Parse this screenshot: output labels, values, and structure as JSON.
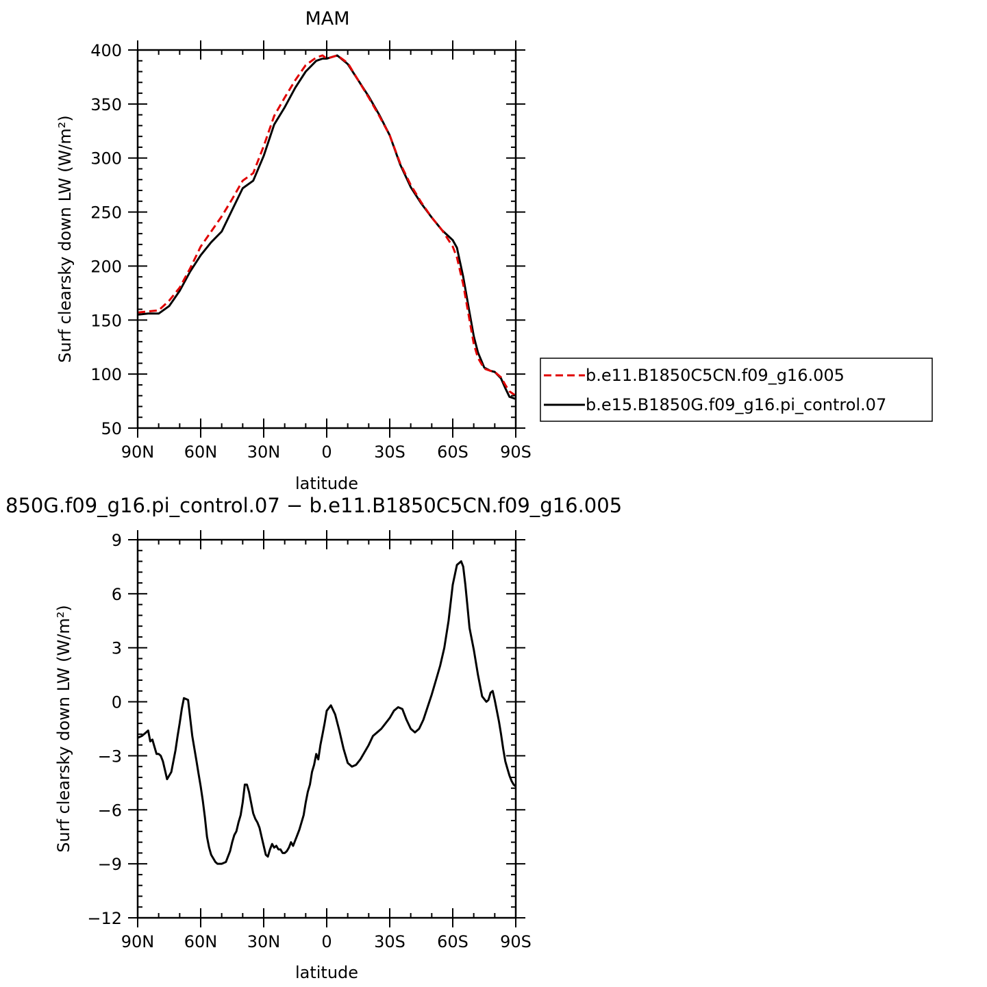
{
  "chart_data": [
    {
      "type": "line",
      "title": "MAM",
      "xlabel": "latitude",
      "ylabel": "Surf clearsky down LW (W/m²)",
      "xlim": [
        90,
        -90
      ],
      "ylim": [
        50,
        400
      ],
      "x_ticks": [
        90,
        60,
        30,
        0,
        -30,
        -60,
        -90
      ],
      "x_tick_labels": [
        "90N",
        "60N",
        "30N",
        "0",
        "30S",
        "60S",
        "90S"
      ],
      "y_ticks": [
        50,
        100,
        150,
        200,
        250,
        300,
        350,
        400
      ],
      "y_tick_labels": [
        "50",
        "100",
        "150",
        "200",
        "250",
        "300",
        "350",
        "400"
      ],
      "legend": {
        "placement": "right",
        "entries": [
          "b.e11.B1850C5CN.f09_g16.005",
          "b.e15.B1850G.f09_g16.pi_control.07"
        ]
      },
      "series": [
        {
          "name": "b.e11.B1850C5CN.f09_g16.005",
          "color": "#e00000",
          "dash": "dashed",
          "x": [
            90,
            85,
            80,
            75,
            70,
            65,
            60,
            55,
            50,
            45,
            40,
            35,
            30,
            25,
            20,
            15,
            10,
            5,
            2,
            0,
            -5,
            -10,
            -15,
            -20,
            -25,
            -30,
            -35,
            -40,
            -45,
            -50,
            -55,
            -60,
            -62,
            -65,
            -68,
            -70,
            -72,
            -75,
            -78,
            -80,
            -83,
            -85,
            -87,
            -90
          ],
          "y": [
            157,
            158,
            159,
            168,
            180,
            198,
            218,
            232,
            246,
            262,
            279,
            286,
            311,
            339,
            356,
            372,
            386,
            393,
            395,
            392,
            395,
            388,
            372,
            356,
            339,
            321,
            295,
            275,
            259,
            245,
            233,
            218,
            208,
            183,
            150,
            128,
            115,
            105,
            103,
            102,
            97,
            90,
            84,
            80
          ]
        },
        {
          "name": "b.e15.B1850G.f09_g16.pi_control.07",
          "color": "#000000",
          "dash": "solid",
          "x": [
            90,
            85,
            80,
            75,
            70,
            65,
            60,
            55,
            50,
            45,
            40,
            35,
            30,
            25,
            20,
            15,
            10,
            5,
            2,
            0,
            -5,
            -10,
            -15,
            -20,
            -25,
            -30,
            -35,
            -40,
            -45,
            -50,
            -55,
            -60,
            -62,
            -65,
            -68,
            -70,
            -72,
            -75,
            -78,
            -80,
            -83,
            -85,
            -87,
            -90
          ],
          "y": [
            155,
            156,
            156,
            163,
            177,
            195,
            210,
            222,
            232,
            252,
            272,
            279,
            302,
            331,
            347,
            365,
            380,
            390,
            392,
            392,
            395,
            387,
            372,
            357,
            340,
            321,
            294,
            273,
            258,
            245,
            233,
            224,
            217,
            190,
            157,
            135,
            120,
            106,
            103,
            102,
            96,
            87,
            79,
            77
          ]
        }
      ]
    },
    {
      "type": "line",
      "title": "850G.f09_g16.pi_control.07 − b.e11.B1850C5CN.f09_g16.005",
      "xlabel": "latitude",
      "ylabel": "Surf clearsky down LW (W/m²)",
      "xlim": [
        90,
        -90
      ],
      "ylim": [
        -12,
        9
      ],
      "x_ticks": [
        90,
        60,
        30,
        0,
        -30,
        -60,
        -90
      ],
      "x_tick_labels": [
        "90N",
        "60N",
        "30N",
        "0",
        "30S",
        "60S",
        "90S"
      ],
      "y_ticks": [
        -12,
        -9,
        -6,
        -3,
        0,
        3,
        6,
        9
      ],
      "y_tick_labels": [
        "−12",
        "−9",
        "−6",
        "−3",
        "0",
        "3",
        "6",
        "9"
      ],
      "series": [
        {
          "color": "#000000",
          "dash": "solid",
          "x": [
            90,
            88,
            86,
            85,
            84,
            83,
            82,
            81,
            80,
            79,
            78,
            77,
            76,
            74,
            72,
            71,
            70,
            69,
            68,
            66,
            64,
            62,
            61,
            60,
            59,
            58,
            57,
            56,
            55,
            54,
            53,
            52,
            50,
            48,
            46,
            45,
            44,
            43,
            42,
            41,
            40,
            39,
            38,
            37,
            36,
            35,
            34,
            33,
            32,
            31,
            30,
            29,
            28,
            27,
            26,
            25,
            24,
            23,
            22,
            21,
            20,
            19,
            18,
            17,
            16,
            15,
            14,
            13,
            12,
            11,
            10,
            9,
            8,
            7,
            6,
            5,
            4,
            3,
            2,
            1,
            0,
            -2,
            -4,
            -6,
            -8,
            -10,
            -12,
            -14,
            -16,
            -18,
            -20,
            -22,
            -24,
            -26,
            -28,
            -30,
            -32,
            -34,
            -36,
            -38,
            -40,
            -42,
            -44,
            -46,
            -48,
            -50,
            -52,
            -54,
            -56,
            -58,
            -60,
            -62,
            -64,
            -65,
            -66,
            -67,
            -68,
            -69,
            -70,
            -72,
            -74,
            -76,
            -77,
            -78,
            -79,
            -80,
            -81,
            -82,
            -83,
            -84,
            -85,
            -86,
            -87,
            -88,
            -89,
            -90
          ],
          "y": [
            -2.0,
            -1.9,
            -1.7,
            -1.6,
            -2.2,
            -2.1,
            -2.5,
            -2.9,
            -2.9,
            -3.0,
            -3.3,
            -3.8,
            -4.3,
            -3.9,
            -2.7,
            -1.9,
            -1.2,
            -0.4,
            0.2,
            0.1,
            -1.9,
            -3.3,
            -4.0,
            -4.7,
            -5.5,
            -6.4,
            -7.5,
            -8.1,
            -8.5,
            -8.7,
            -8.9,
            -9.0,
            -9.0,
            -8.9,
            -8.3,
            -7.8,
            -7.4,
            -7.2,
            -6.7,
            -6.3,
            -5.6,
            -4.6,
            -4.6,
            -5.0,
            -5.6,
            -6.2,
            -6.5,
            -6.7,
            -7.0,
            -7.5,
            -8.0,
            -8.5,
            -8.6,
            -8.2,
            -7.9,
            -8.1,
            -8.0,
            -8.2,
            -8.2,
            -8.4,
            -8.4,
            -8.3,
            -8.1,
            -7.8,
            -8.0,
            -7.7,
            -7.4,
            -7.1,
            -6.7,
            -6.3,
            -5.6,
            -5.0,
            -4.6,
            -3.9,
            -3.5,
            -2.9,
            -3.2,
            -2.4,
            -1.8,
            -1.2,
            -0.5,
            -0.2,
            -0.7,
            -1.6,
            -2.6,
            -3.4,
            -3.6,
            -3.5,
            -3.2,
            -2.8,
            -2.4,
            -1.9,
            -1.7,
            -1.5,
            -1.2,
            -0.9,
            -0.5,
            -0.3,
            -0.4,
            -1.0,
            -1.5,
            -1.7,
            -1.5,
            -1.0,
            -0.3,
            0.4,
            1.2,
            2.0,
            3.0,
            4.5,
            6.5,
            7.6,
            7.8,
            7.5,
            6.5,
            5.3,
            4.1,
            3.5,
            2.9,
            1.5,
            0.3,
            0.0,
            0.1,
            0.5,
            0.6,
            0.1,
            -0.5,
            -1.1,
            -1.8,
            -2.6,
            -3.3,
            -3.7,
            -4.1,
            -4.4,
            -4.6,
            -4.7
          ]
        }
      ]
    }
  ]
}
